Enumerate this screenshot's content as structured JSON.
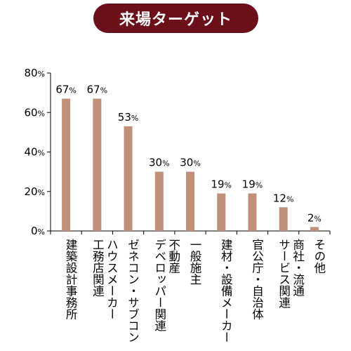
{
  "title": "来場ターゲット",
  "colors": {
    "title_bg": "#6b0f1a",
    "bar": "#c0907a",
    "axis": "#000000"
  },
  "chart_data": {
    "type": "bar",
    "categories": [
      "建築設計事務所",
      "ハウスメーカー\n工務店関連",
      "ゼネコン・サブコン",
      "不動産\nデベロッパー関連",
      "一般施主",
      "建材・設備メーカー",
      "官公庁・自治体",
      "商社・流通\nサービス関連",
      "その他"
    ],
    "values": [
      67,
      67,
      53,
      30,
      30,
      19,
      19,
      12,
      2
    ],
    "value_labels": [
      "67",
      "67",
      "53",
      "30",
      "30",
      "19",
      "19",
      "12",
      "2"
    ],
    "value_suffix": "%",
    "y_ticks": [
      "0",
      "20",
      "40",
      "60",
      "80"
    ],
    "ylim": [
      0,
      80
    ],
    "grid": false
  }
}
